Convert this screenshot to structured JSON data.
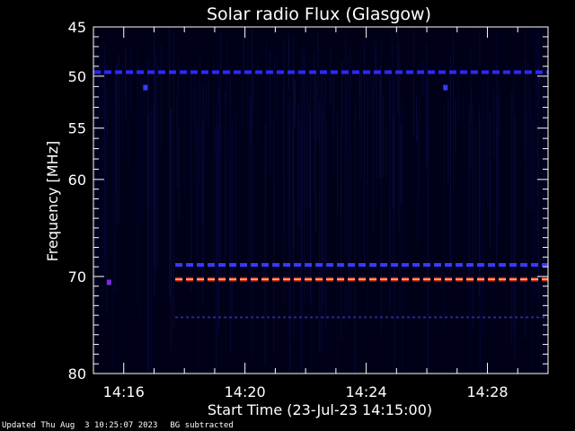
{
  "chart_data": {
    "type": "heatmap",
    "title": "Solar radio Flux (Glasgow)",
    "xlabel": "Start Time (23-Jul-23 14:15:00)",
    "ylabel": "Frequency [MHz]",
    "x_ticks": [
      "14:16",
      "14:20",
      "14:24",
      "14:28"
    ],
    "x_tick_minutes": [
      1,
      5,
      9,
      13
    ],
    "x_range_minutes": [
      0,
      15
    ],
    "y_ticks": [
      45,
      50,
      55,
      60,
      70,
      80
    ],
    "y_range": [
      45,
      80
    ],
    "y_scale": "nonlinear",
    "y_tick_fraction": [
      0.0,
      0.142,
      0.292,
      0.44,
      0.72,
      1.0
    ],
    "background_color": "#000018",
    "bands": [
      {
        "freq": 49.6,
        "start_min": 0,
        "end_min": 15,
        "color": "#2a2aff",
        "style": "dashed"
      },
      {
        "freq": 68.8,
        "start_min": 2.7,
        "end_min": 15,
        "color": "#3a3aff",
        "style": "dashed"
      },
      {
        "freq": 70.3,
        "start_min": 2.7,
        "end_min": 15,
        "color": "#ff3020",
        "style": "dashed-hot"
      },
      {
        "freq": 74.2,
        "start_min": 2.7,
        "end_min": 15,
        "color": "#2a2a90",
        "style": "dotted"
      }
    ],
    "spots": [
      {
        "minute": 0.5,
        "freq": 70.6,
        "color": "#7a2ae0"
      },
      {
        "minute": 1.7,
        "freq": 51.1,
        "color": "#3a3aff"
      },
      {
        "minute": 11.6,
        "freq": 51.1,
        "color": "#3a3aff"
      }
    ]
  },
  "footer": {
    "updated": "Updated Thu Aug  3 10:25:07 2023",
    "note": "BG subtracted"
  }
}
